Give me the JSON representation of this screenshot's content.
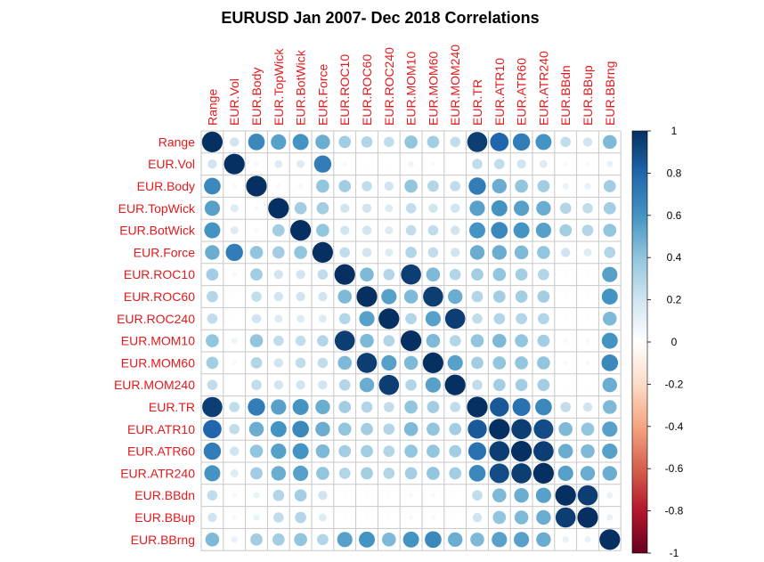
{
  "chart_data": {
    "type": "heatmap",
    "title": "EURUSD Jan 2007- Dec 2018 Correlations",
    "variables": [
      "Range",
      "EUR.Vol",
      "EUR.Body",
      "EUR.TopWick",
      "EUR.BotWick",
      "EUR.Force",
      "EUR.ROC10",
      "EUR.ROC60",
      "EUR.ROC240",
      "EUR.MOM10",
      "EUR.MOM60",
      "EUR.MOM240",
      "EUR.TR",
      "EUR.ATR10",
      "EUR.ATR60",
      "EUR.ATR240",
      "EUR.BBdn",
      "EUR.BBup",
      "EUR.BBrng"
    ],
    "matrix": [
      [
        1,
        0.2,
        0.65,
        0.55,
        0.6,
        0.5,
        0.35,
        0.3,
        0.25,
        0.4,
        0.35,
        0.25,
        0.95,
        0.8,
        0.7,
        0.6,
        0.25,
        0.2,
        0.45
      ],
      [
        0.2,
        1,
        0.05,
        0.15,
        0.15,
        0.7,
        0.05,
        0.02,
        0.02,
        0.08,
        0.05,
        0.02,
        0.25,
        0.25,
        0.2,
        0.15,
        0.05,
        0.05,
        0.1
      ],
      [
        0.65,
        0.05,
        1,
        0.05,
        0.05,
        0.4,
        0.35,
        0.25,
        0.2,
        0.4,
        0.3,
        0.25,
        0.7,
        0.5,
        0.4,
        0.35,
        0.1,
        0.1,
        0.35
      ],
      [
        0.55,
        0.15,
        0.05,
        1,
        0.35,
        0.35,
        0.2,
        0.2,
        0.15,
        0.25,
        0.2,
        0.2,
        0.55,
        0.6,
        0.55,
        0.5,
        0.3,
        0.25,
        0.35
      ],
      [
        0.6,
        0.15,
        0.05,
        0.35,
        1,
        0.4,
        0.2,
        0.2,
        0.15,
        0.25,
        0.25,
        0.2,
        0.6,
        0.65,
        0.6,
        0.55,
        0.35,
        0.3,
        0.4
      ],
      [
        0.5,
        0.7,
        0.4,
        0.35,
        0.4,
        1,
        0.25,
        0.2,
        0.15,
        0.3,
        0.25,
        0.2,
        0.5,
        0.5,
        0.45,
        0.4,
        0.2,
        0.15,
        0.3
      ],
      [
        0.35,
        0.05,
        0.35,
        0.2,
        0.2,
        0.25,
        1,
        0.45,
        0.3,
        0.95,
        0.45,
        0.3,
        0.35,
        0.4,
        0.35,
        0.3,
        0.02,
        0.02,
        0.55
      ],
      [
        0.3,
        0.02,
        0.25,
        0.2,
        0.2,
        0.2,
        0.45,
        1,
        0.55,
        0.45,
        0.95,
        0.5,
        0.3,
        0.35,
        0.35,
        0.35,
        0.02,
        0.02,
        0.6
      ],
      [
        0.25,
        0.02,
        0.2,
        0.15,
        0.15,
        0.15,
        0.3,
        0.55,
        1,
        0.3,
        0.55,
        0.95,
        0.25,
        0.3,
        0.3,
        0.3,
        0.02,
        0.02,
        0.45
      ],
      [
        0.4,
        0.08,
        0.4,
        0.25,
        0.25,
        0.3,
        0.95,
        0.45,
        0.3,
        1,
        0.45,
        0.3,
        0.4,
        0.45,
        0.4,
        0.35,
        0.05,
        0.05,
        0.6
      ],
      [
        0.35,
        0.05,
        0.3,
        0.2,
        0.25,
        0.25,
        0.45,
        0.95,
        0.55,
        0.45,
        1,
        0.55,
        0.35,
        0.4,
        0.4,
        0.4,
        0.05,
        0.05,
        0.65
      ],
      [
        0.25,
        0.02,
        0.25,
        0.2,
        0.2,
        0.2,
        0.3,
        0.5,
        0.95,
        0.3,
        0.55,
        1,
        0.25,
        0.35,
        0.35,
        0.35,
        0.02,
        0.02,
        0.5
      ],
      [
        0.95,
        0.25,
        0.7,
        0.55,
        0.6,
        0.5,
        0.35,
        0.3,
        0.25,
        0.4,
        0.35,
        0.25,
        1,
        0.85,
        0.75,
        0.65,
        0.25,
        0.2,
        0.45
      ],
      [
        0.8,
        0.25,
        0.5,
        0.6,
        0.65,
        0.5,
        0.4,
        0.35,
        0.3,
        0.45,
        0.4,
        0.35,
        0.85,
        1,
        0.95,
        0.9,
        0.45,
        0.4,
        0.55
      ],
      [
        0.7,
        0.2,
        0.4,
        0.55,
        0.6,
        0.45,
        0.35,
        0.35,
        0.3,
        0.4,
        0.4,
        0.35,
        0.75,
        0.95,
        1,
        0.95,
        0.5,
        0.45,
        0.55
      ],
      [
        0.6,
        0.15,
        0.35,
        0.5,
        0.55,
        0.4,
        0.3,
        0.35,
        0.3,
        0.35,
        0.4,
        0.35,
        0.65,
        0.9,
        0.95,
        1,
        0.55,
        0.5,
        0.5
      ],
      [
        0.25,
        0.05,
        0.1,
        0.3,
        0.35,
        0.2,
        0.02,
        0.02,
        0.02,
        0.05,
        0.05,
        0.02,
        0.25,
        0.45,
        0.5,
        0.55,
        1,
        0.95,
        0.1
      ],
      [
        0.2,
        0.05,
        0.1,
        0.25,
        0.3,
        0.15,
        0.02,
        0.02,
        0.02,
        0.05,
        0.05,
        0.02,
        0.2,
        0.4,
        0.45,
        0.5,
        0.95,
        1,
        0.1
      ],
      [
        0.45,
        0.1,
        0.35,
        0.35,
        0.4,
        0.3,
        0.55,
        0.6,
        0.45,
        0.6,
        0.65,
        0.5,
        0.45,
        0.55,
        0.55,
        0.5,
        0.1,
        0.1,
        1
      ]
    ],
    "colorbar": {
      "range": [
        -1,
        1
      ],
      "ticks": [
        "1",
        "0.8",
        "0.6",
        "0.4",
        "0.2",
        "0",
        "-0.2",
        "-0.4",
        "-0.6",
        "-0.8",
        "-1"
      ],
      "stops": [
        "#053061",
        "#2166ac",
        "#4393c3",
        "#92c5de",
        "#d1e5f0",
        "#ffffff",
        "#fddbc7",
        "#f4a582",
        "#d6604d",
        "#b2182b",
        "#67001f"
      ]
    },
    "label_color": "#e41a1c",
    "grid": true
  }
}
